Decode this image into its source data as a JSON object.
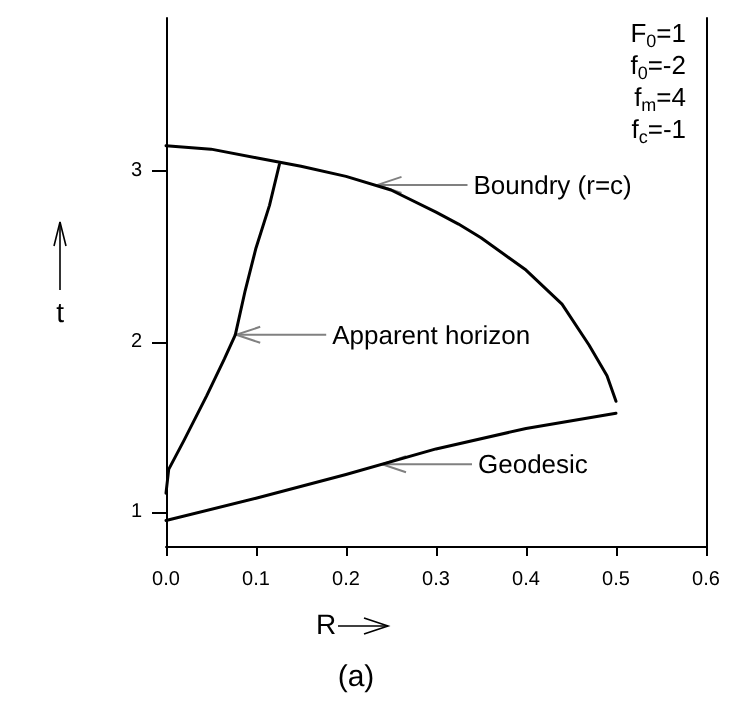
{
  "chart_data": {
    "type": "line",
    "xlabel": "R",
    "ylabel": "t",
    "xlim": [
      0,
      0.6
    ],
    "ylim": [
      0.8,
      3.9
    ],
    "xticks": [
      {
        "value": 0,
        "label": "0.0"
      },
      {
        "value": 0.1,
        "label": "0.1"
      },
      {
        "value": 0.2,
        "label": "0.2"
      },
      {
        "value": 0.3,
        "label": "0.3"
      },
      {
        "value": 0.4,
        "label": "0.4"
      },
      {
        "value": 0.5,
        "label": "0.5"
      },
      {
        "value": 0.6,
        "label": "0.6"
      }
    ],
    "yticks": [
      1,
      2,
      3
    ],
    "grid": false,
    "marker": "none",
    "line_style": "solid",
    "series": [
      {
        "color": "#000000",
        "x": [
          0,
          0.05,
          0.1,
          0.15,
          0.2,
          0.25,
          0.3,
          0.325,
          0.35,
          0.4,
          0.44,
          0.47,
          0.49,
          0.5
        ],
        "values": [
          3.15,
          3.13,
          3.08,
          3.03,
          2.97,
          2.89,
          2.76,
          2.69,
          2.61,
          2.42,
          2.22,
          1.98,
          1.8,
          1.65
        ]
      },
      {
        "color": "#000000",
        "x": [
          0,
          0.003,
          0.02,
          0.045,
          0.065,
          0.077,
          0.088,
          0.1,
          0.115,
          0.126
        ],
        "values": [
          1.11,
          1.25,
          1.42,
          1.68,
          1.9,
          2.04,
          2.3,
          2.55,
          2.8,
          3.04
        ]
      },
      {
        "color": "#000000",
        "x": [
          0,
          0.1,
          0.2,
          0.3,
          0.4,
          0.5
        ],
        "values": [
          0.95,
          1.08,
          1.22,
          1.37,
          1.49,
          1.58
        ]
      }
    ],
    "annotations": [
      {
        "text": "Boundry (r=c)",
        "x": 0.235,
        "y": 2.92
      },
      {
        "text": "Apparent horizon",
        "x": 0.078,
        "y": 2.04
      },
      {
        "text": "Geodesic",
        "x": 0.24,
        "y": 1.28
      },
      "F$_{0}$=1",
      "f$_{0}$=-2",
      "f$_{m}$=4",
      "f$_{c}$=-1",
      "(a)"
    ]
  }
}
